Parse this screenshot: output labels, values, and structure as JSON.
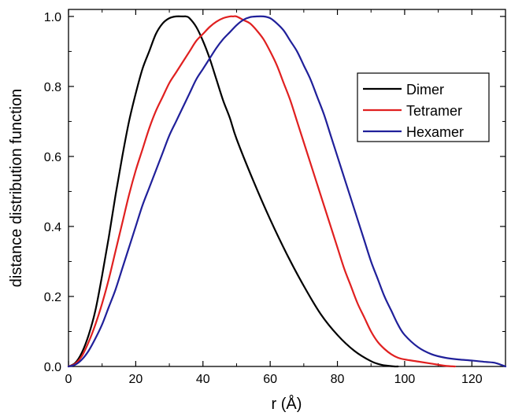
{
  "chart_data": {
    "type": "line",
    "title": "",
    "xlabel": "r (Å)",
    "ylabel": "distance distribution function",
    "xlim": [
      0,
      130
    ],
    "ylim": [
      0.0,
      1.02
    ],
    "x_ticks": [
      0,
      20,
      40,
      60,
      80,
      100,
      120
    ],
    "y_ticks": [
      0.0,
      0.2,
      0.4,
      0.6,
      0.8,
      1.0
    ],
    "x_tick_labels": [
      "0",
      "20",
      "40",
      "60",
      "80",
      "100",
      "120"
    ],
    "y_tick_labels": [
      "0.0",
      "0.2",
      "0.4",
      "0.6",
      "0.8",
      "1.0"
    ],
    "grid": false,
    "legend_position": "top-right",
    "series": [
      {
        "name": "Dimer",
        "color": "#000000",
        "x": [
          0,
          2,
          4,
          6,
          8,
          10,
          12,
          14,
          16,
          18,
          20,
          22,
          24,
          26,
          28,
          30,
          32,
          34,
          35,
          36,
          38,
          40,
          42,
          44,
          46,
          48,
          50,
          55,
          60,
          65,
          70,
          75,
          80,
          85,
          90,
          93,
          95,
          97,
          98
        ],
        "values": [
          0.0,
          0.01,
          0.04,
          0.09,
          0.16,
          0.26,
          0.37,
          0.49,
          0.6,
          0.7,
          0.78,
          0.85,
          0.9,
          0.95,
          0.98,
          0.995,
          1.0,
          1.0,
          1.0,
          0.995,
          0.97,
          0.93,
          0.88,
          0.82,
          0.76,
          0.71,
          0.65,
          0.53,
          0.42,
          0.32,
          0.23,
          0.15,
          0.09,
          0.045,
          0.015,
          0.005,
          0.002,
          0.0,
          0.0
        ]
      },
      {
        "name": "Tetramer",
        "color": "#e02020",
        "x": [
          0,
          2,
          4,
          6,
          8,
          10,
          12,
          14,
          16,
          18,
          20,
          22,
          24,
          26,
          28,
          30,
          32,
          34,
          36,
          38,
          40,
          42,
          44,
          46,
          48,
          49,
          50,
          52,
          54,
          56,
          58,
          60,
          62,
          64,
          66,
          68,
          70,
          72,
          74,
          76,
          78,
          80,
          82,
          84,
          86,
          88,
          90,
          92,
          94,
          96,
          98,
          100,
          104,
          108,
          112,
          115
        ],
        "values": [
          0.0,
          0.008,
          0.03,
          0.07,
          0.12,
          0.18,
          0.25,
          0.33,
          0.41,
          0.49,
          0.56,
          0.62,
          0.68,
          0.73,
          0.77,
          0.81,
          0.84,
          0.87,
          0.9,
          0.93,
          0.95,
          0.97,
          0.985,
          0.995,
          1.0,
          1.0,
          1.0,
          0.99,
          0.98,
          0.96,
          0.935,
          0.9,
          0.86,
          0.81,
          0.76,
          0.7,
          0.64,
          0.58,
          0.52,
          0.46,
          0.4,
          0.34,
          0.28,
          0.23,
          0.18,
          0.14,
          0.1,
          0.07,
          0.05,
          0.035,
          0.025,
          0.02,
          0.014,
          0.008,
          0.002,
          0.0
        ]
      },
      {
        "name": "Hexamer",
        "color": "#20209a",
        "x": [
          0,
          2,
          4,
          6,
          8,
          10,
          12,
          14,
          16,
          18,
          20,
          22,
          24,
          26,
          28,
          30,
          32,
          34,
          36,
          38,
          40,
          42,
          44,
          46,
          48,
          50,
          52,
          54,
          56,
          58,
          60,
          62,
          64,
          66,
          68,
          70,
          72,
          74,
          76,
          78,
          80,
          82,
          84,
          86,
          88,
          90,
          92,
          94,
          96,
          98,
          100,
          104,
          108,
          112,
          116,
          120,
          124,
          127,
          130
        ],
        "values": [
          0.0,
          0.005,
          0.02,
          0.045,
          0.08,
          0.12,
          0.17,
          0.22,
          0.28,
          0.34,
          0.4,
          0.46,
          0.51,
          0.56,
          0.61,
          0.66,
          0.7,
          0.74,
          0.78,
          0.82,
          0.85,
          0.88,
          0.91,
          0.935,
          0.955,
          0.975,
          0.99,
          0.998,
          1.0,
          1.0,
          0.995,
          0.98,
          0.96,
          0.93,
          0.9,
          0.86,
          0.82,
          0.77,
          0.72,
          0.66,
          0.6,
          0.54,
          0.48,
          0.42,
          0.36,
          0.3,
          0.25,
          0.2,
          0.16,
          0.12,
          0.09,
          0.055,
          0.035,
          0.025,
          0.02,
          0.017,
          0.013,
          0.01,
          0.0
        ]
      }
    ]
  }
}
